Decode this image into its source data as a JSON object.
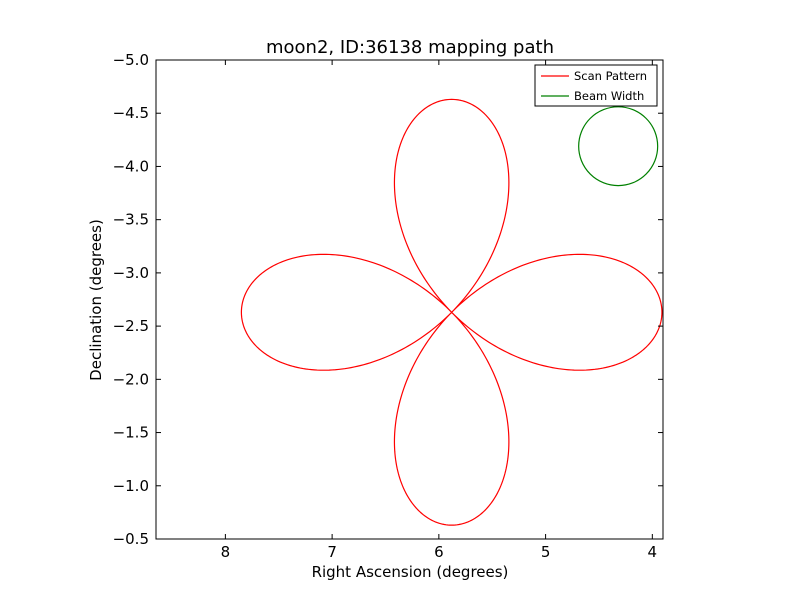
{
  "chart_data": {
    "type": "line",
    "title": "moon2, ID:36138 mapping path",
    "xlabel": "Right Ascension (degrees)",
    "ylabel": "Declination (degrees)",
    "xlim": [
      8.65,
      3.9
    ],
    "ylim": [
      -5.0,
      -0.5
    ],
    "x_ticks": [
      8,
      7,
      6,
      5,
      4
    ],
    "x_tick_labels": [
      "8",
      "7",
      "6",
      "5",
      "4"
    ],
    "y_ticks": [
      -0.5,
      -1.0,
      -1.5,
      -2.0,
      -2.5,
      -3.0,
      -3.5,
      -4.0,
      -4.5,
      -5.0
    ],
    "y_tick_labels": [
      "−0.5",
      "−1.0",
      "−1.5",
      "−2.0",
      "−2.5",
      "−3.0",
      "−3.5",
      "−4.0",
      "−4.5",
      "−5.0"
    ],
    "grid": false,
    "legend_position": "top-right",
    "series": [
      {
        "name": "Scan Pattern",
        "color": "#ff0000",
        "shape": "four-lobed rose path",
        "center": [
          5.88,
          -2.63
        ],
        "lobe_extent_ra": 1.97,
        "lobe_extent_dec": 2.0,
        "lobe_half_width_ra": 0.56,
        "lobe_half_width_dec": 0.55
      },
      {
        "name": "Beam Width",
        "color": "#008000",
        "shape": "circle",
        "center": [
          4.32,
          -4.19
        ],
        "radius": 0.37
      }
    ]
  }
}
